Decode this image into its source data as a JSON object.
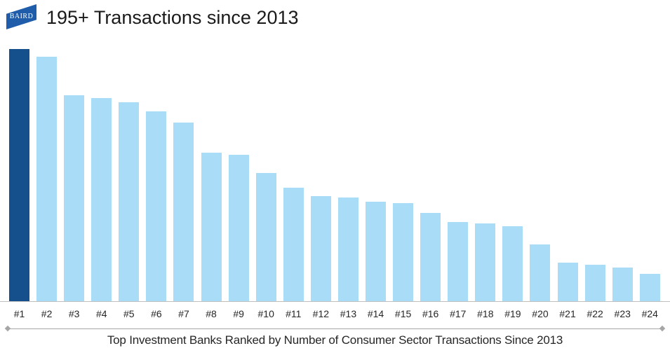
{
  "header": {
    "logo_text": "BAIRD",
    "title": "195+ Transactions since 2013"
  },
  "colors": {
    "logo_blue": "#1F5CA9",
    "bar_highlight": "#15508C",
    "bar_default": "#A9DDF7",
    "axis_line": "#BFBFBF",
    "divider": "#A6A6A6",
    "text_dark": "#262626"
  },
  "chart_data": {
    "type": "bar",
    "title": "195+ Transactions since 2013",
    "categories": [
      "#1",
      "#2",
      "#3",
      "#4",
      "#5",
      "#6",
      "#7",
      "#8",
      "#9",
      "#10",
      "#11",
      "#12",
      "#13",
      "#14",
      "#15",
      "#16",
      "#17",
      "#18",
      "#19",
      "#20",
      "#21",
      "#22",
      "#23",
      "#24"
    ],
    "values": [
      195,
      189,
      159,
      157,
      154,
      147,
      138,
      115,
      113,
      99,
      88,
      81,
      80,
      77,
      76,
      68,
      61,
      60,
      58,
      44,
      30,
      28,
      26,
      21
    ],
    "highlight_index": 0,
    "xlabel": "",
    "ylabel": "",
    "ylim": [
      0,
      195
    ],
    "grid": false,
    "legend": "none",
    "caption": "Top Investment Banks Ranked by Number of Consumer Sector Transactions Since 2013"
  },
  "footer": {
    "caption": "Top Investment Banks Ranked by Number of Consumer Sector Transactions Since 2013"
  }
}
